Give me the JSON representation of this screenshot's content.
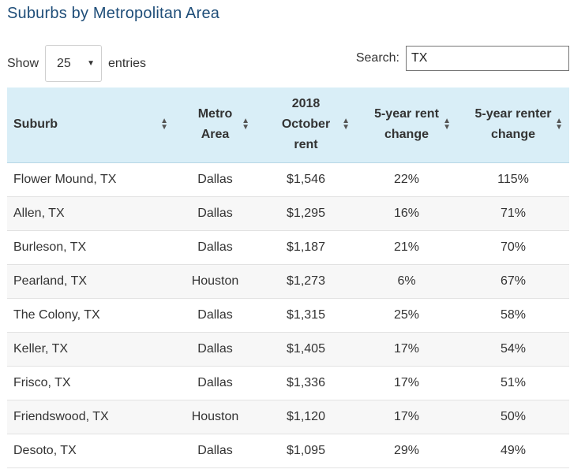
{
  "title": "Suburbs by Metropolitan Area",
  "length": {
    "show_label": "Show",
    "selected": "25",
    "entries_label": "entries"
  },
  "search": {
    "label": "Search:",
    "value": "TX"
  },
  "table": {
    "headers": [
      [
        "Suburb"
      ],
      [
        "Metro",
        "Area"
      ],
      [
        "2018",
        "October",
        "rent"
      ],
      [
        "5-year rent",
        "change"
      ],
      [
        "5-year renter",
        "change"
      ]
    ],
    "rows": [
      [
        "Flower Mound, TX",
        "Dallas",
        "$1,546",
        "22%",
        "115%"
      ],
      [
        "Allen, TX",
        "Dallas",
        "$1,295",
        "16%",
        "71%"
      ],
      [
        "Burleson, TX",
        "Dallas",
        "$1,187",
        "21%",
        "70%"
      ],
      [
        "Pearland, TX",
        "Houston",
        "$1,273",
        "6%",
        "67%"
      ],
      [
        "The Colony, TX",
        "Dallas",
        "$1,315",
        "25%",
        "58%"
      ],
      [
        "Keller, TX",
        "Dallas",
        "$1,405",
        "17%",
        "54%"
      ],
      [
        "Frisco, TX",
        "Dallas",
        "$1,336",
        "17%",
        "51%"
      ],
      [
        "Friendswood, TX",
        "Houston",
        "$1,120",
        "17%",
        "50%"
      ],
      [
        "Desoto, TX",
        "Dallas",
        "$1,095",
        "29%",
        "49%"
      ]
    ]
  }
}
